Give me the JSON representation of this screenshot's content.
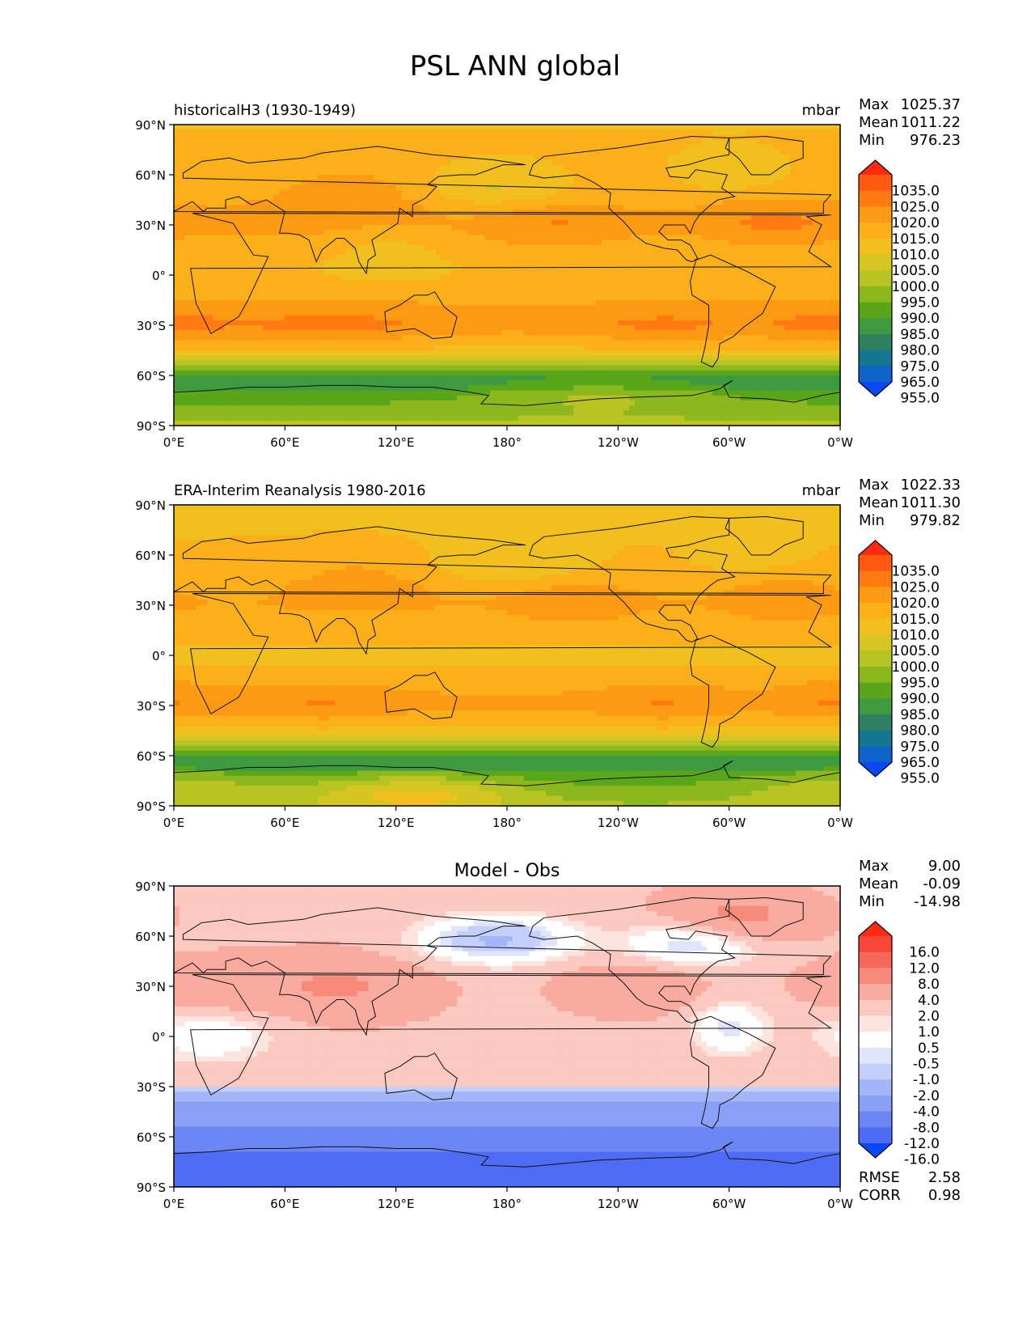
{
  "figure_title": "PSL ANN global",
  "chart_data": [
    {
      "type": "heatmap",
      "title_left": "historicalH3 (1930-1949)",
      "title_center": "",
      "units": "mbar",
      "stats": [
        {
          "label": "Max",
          "value": "1025.37"
        },
        {
          "label": "Mean",
          "value": "1011.22"
        },
        {
          "label": "Min",
          "value": "976.23"
        }
      ],
      "footer_stats": [],
      "x_ticks": [
        "0°E",
        "60°E",
        "120°E",
        "180°",
        "120°W",
        "60°W",
        "0°W"
      ],
      "y_ticks": [
        "90°N",
        "60°N",
        "30°N",
        "0°",
        "30°S",
        "60°S",
        "90°S"
      ],
      "xlim": [
        0,
        360
      ],
      "ylim": [
        -90,
        90
      ],
      "colorbar_levels": [
        "1035.0",
        "1025.0",
        "1020.0",
        "1015.0",
        "1010.0",
        "1005.0",
        "1000.0",
        "995.0",
        "990.0",
        "985.0",
        "980.0",
        "975.0",
        "965.0",
        "955.0"
      ],
      "colorbar_colors": [
        "#ff2a10",
        "#ff5a10",
        "#ff7a10",
        "#fd9a14",
        "#fbb01a",
        "#f1c01e",
        "#d6c624",
        "#b8c424",
        "#8cb81e",
        "#5aa61a",
        "#3e9a40",
        "#2e8060",
        "#157890",
        "#0f62c8",
        "#0b48f5"
      ],
      "field": "model_psl",
      "palette": [
        "#0b48f5",
        "#0f62c8",
        "#157890",
        "#2e8060",
        "#3e9a40",
        "#5aa61a",
        "#8cb81e",
        "#b8c424",
        "#d6c624",
        "#f1c01e",
        "#fbb01a",
        "#fd9a14",
        "#ff7a10",
        "#ff5a10",
        "#ff2a10"
      ],
      "bounds": [
        955,
        965,
        975,
        980,
        985,
        990,
        995,
        1000,
        1005,
        1010,
        1015,
        1020,
        1025,
        1035
      ]
    },
    {
      "type": "heatmap",
      "title_left": "ERA-Interim Reanalysis 1980-2016",
      "title_center": "",
      "units": "mbar",
      "stats": [
        {
          "label": "Max",
          "value": "1022.33"
        },
        {
          "label": "Mean",
          "value": "1011.30"
        },
        {
          "label": "Min",
          "value": "979.82"
        }
      ],
      "footer_stats": [],
      "x_ticks": [
        "0°E",
        "60°E",
        "120°E",
        "180°",
        "120°W",
        "60°W",
        "0°W"
      ],
      "y_ticks": [
        "90°N",
        "60°N",
        "30°N",
        "0°",
        "30°S",
        "60°S",
        "90°S"
      ],
      "xlim": [
        0,
        360
      ],
      "ylim": [
        -90,
        90
      ],
      "colorbar_levels": [
        "1035.0",
        "1025.0",
        "1020.0",
        "1015.0",
        "1010.0",
        "1005.0",
        "1000.0",
        "995.0",
        "990.0",
        "985.0",
        "980.0",
        "975.0",
        "965.0",
        "955.0"
      ],
      "colorbar_colors": [
        "#ff2a10",
        "#ff5a10",
        "#ff7a10",
        "#fd9a14",
        "#fbb01a",
        "#f1c01e",
        "#d6c624",
        "#b8c424",
        "#8cb81e",
        "#5aa61a",
        "#3e9a40",
        "#2e8060",
        "#157890",
        "#0f62c8",
        "#0b48f5"
      ],
      "field": "obs_psl",
      "palette": [
        "#0b48f5",
        "#0f62c8",
        "#157890",
        "#2e8060",
        "#3e9a40",
        "#5aa61a",
        "#8cb81e",
        "#b8c424",
        "#d6c624",
        "#f1c01e",
        "#fbb01a",
        "#fd9a14",
        "#ff7a10",
        "#ff5a10",
        "#ff2a10"
      ],
      "bounds": [
        955,
        965,
        975,
        980,
        985,
        990,
        995,
        1000,
        1005,
        1010,
        1015,
        1020,
        1025,
        1035
      ]
    },
    {
      "type": "heatmap",
      "title_left": "",
      "title_center": "Model - Obs",
      "units": "",
      "stats": [
        {
          "label": "Max",
          "value": "9.00"
        },
        {
          "label": "Mean",
          "value": "-0.09"
        },
        {
          "label": "Min",
          "value": "-14.98"
        }
      ],
      "footer_stats": [
        {
          "label": "RMSE",
          "value": "2.58"
        },
        {
          "label": "CORR",
          "value": "0.98"
        }
      ],
      "x_ticks": [
        "0°E",
        "60°E",
        "120°E",
        "180°",
        "120°W",
        "60°W",
        "0°W"
      ],
      "y_ticks": [
        "90°N",
        "60°N",
        "30°N",
        "0°",
        "30°S",
        "60°S",
        "90°S"
      ],
      "xlim": [
        0,
        360
      ],
      "ylim": [
        -90,
        90
      ],
      "colorbar_levels": [
        "16.0",
        "12.0",
        "8.0",
        "4.0",
        "2.0",
        "1.0",
        "0.5",
        "-0.5",
        "-1.0",
        "-2.0",
        "-4.0",
        "-8.0",
        "-12.0",
        "-16.0"
      ],
      "colorbar_colors": [
        "#ff2a10",
        "#f7473a",
        "#f5685a",
        "#f78a7a",
        "#f9aba0",
        "#fbc9c0",
        "#fde4de",
        "#ffffff",
        "#dfe5fd",
        "#c4d0fb",
        "#a4b6f8",
        "#8aa0f6",
        "#6c86f4",
        "#4e6cf4",
        "#0b48f5"
      ],
      "field": "diff_psl",
      "palette": [
        "#0b48f5",
        "#4e6cf4",
        "#6c86f4",
        "#8aa0f6",
        "#a4b6f8",
        "#c4d0fb",
        "#dfe5fd",
        "#ffffff",
        "#fde4de",
        "#fbc9c0",
        "#f9aba0",
        "#f78a7a",
        "#f5685a",
        "#f7473a",
        "#ff2a10"
      ],
      "bounds": [
        -16,
        -12,
        -8,
        -4,
        -2,
        -1,
        -0.5,
        0.5,
        1,
        2,
        4,
        8,
        12,
        16
      ]
    }
  ]
}
